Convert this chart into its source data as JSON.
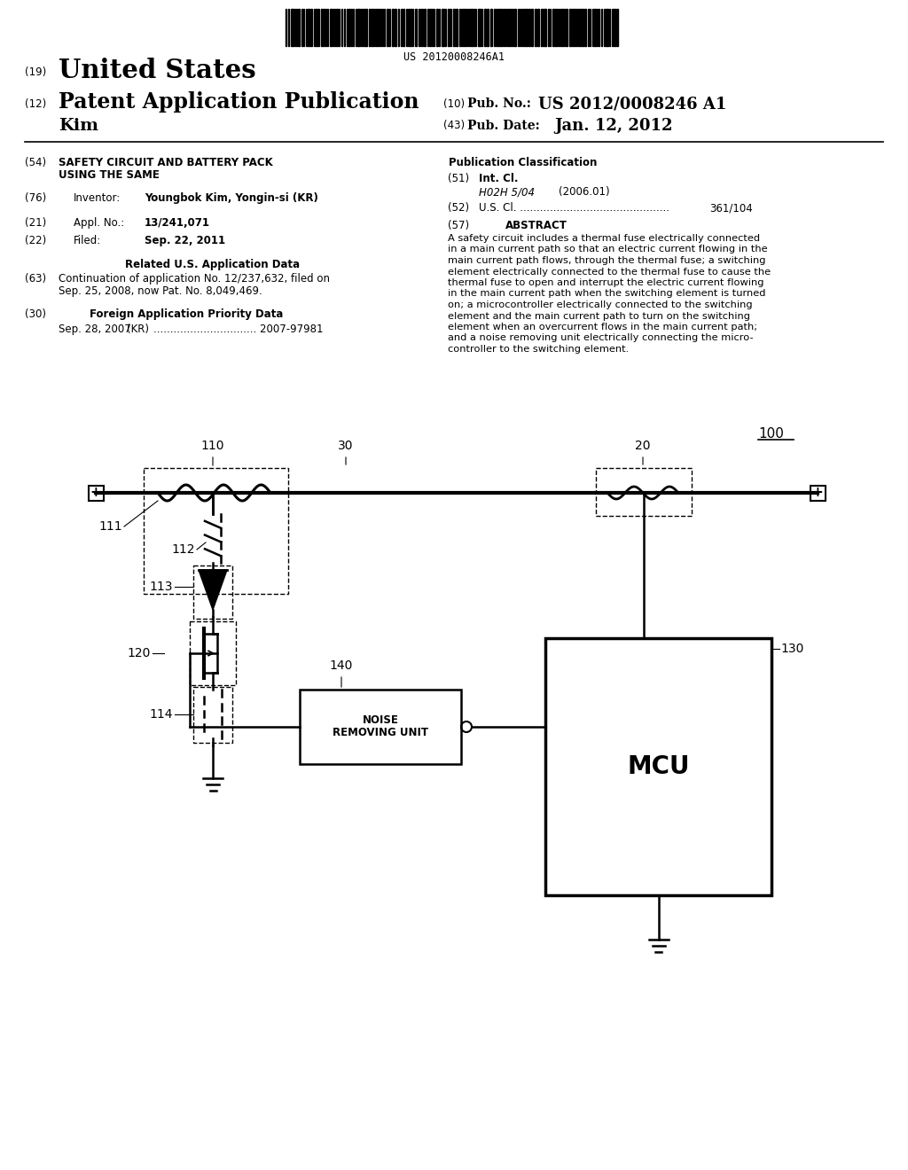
{
  "bg_color": "#ffffff",
  "barcode_text": "US 20120008246A1",
  "header": {
    "tag19": "(19)",
    "country": "United States",
    "tag12": "(12)",
    "pub_type": "Patent Application Publication",
    "author": "Kim",
    "tag10": "(10)",
    "pub_no_label": "Pub. No.:",
    "pub_no": "US 2012/0008246 A1",
    "tag43": "(43)",
    "pub_date_label": "Pub. Date:",
    "pub_date": "Jan. 12, 2012"
  },
  "left_col": {
    "tag54": "(54)",
    "title_line1": "SAFETY CIRCUIT AND BATTERY PACK",
    "title_line2": "USING THE SAME",
    "tag76": "(76)",
    "inventor_label": "Inventor:",
    "inventor": "Youngbok Kim, Yongin-si (KR)",
    "tag21": "(21)",
    "appl_label": "Appl. No.:",
    "appl_no": "13/241,071",
    "tag22": "(22)",
    "filed_label": "Filed:",
    "filed_date": "Sep. 22, 2011",
    "related_header": "Related U.S. Application Data",
    "tag63": "(63)",
    "cont_line1": "Continuation of application No. 12/237,632, filed on",
    "cont_line2": "Sep. 25, 2008, now Pat. No. 8,049,469.",
    "tag30": "(30)",
    "foreign_header": "Foreign Application Priority Data",
    "foreign_date": "Sep. 28, 2007",
    "foreign_country": "(KR)",
    "foreign_dots": "...............................",
    "foreign_num": "2007-97981"
  },
  "right_col": {
    "pub_class_header": "Publication Classification",
    "tag51": "(51)",
    "intcl_label": "Int. Cl.",
    "intcl_code": "H02H 5/04",
    "intcl_year": "(2006.01)",
    "tag52": "(52)",
    "uscl_line": "U.S. Cl. .............................................",
    "uscl_num": "361/104",
    "tag57": "(57)",
    "abstract_header": "ABSTRACT",
    "abstract_lines": [
      "A safety circuit includes a thermal fuse electrically connected",
      "in a main current path so that an electric current flowing in the",
      "main current path flows, through the thermal fuse; a switching",
      "element electrically connected to the thermal fuse to cause the",
      "thermal fuse to open and interrupt the electric current flowing",
      "in the main current path when the switching element is turned",
      "on; a microcontroller electrically connected to the switching",
      "element and the main current path to turn on the switching",
      "element when an overcurrent flows in the main current path;",
      "and a noise removing unit electrically connecting the micro-",
      "controller to the switching element."
    ]
  },
  "circuit": {
    "label_100": "100",
    "label_110": "110",
    "label_111": "111",
    "label_112": "112",
    "label_113": "113",
    "label_114": "114",
    "label_120": "120",
    "label_130": "130",
    "label_140": "140",
    "label_20": "20",
    "label_30": "30"
  }
}
